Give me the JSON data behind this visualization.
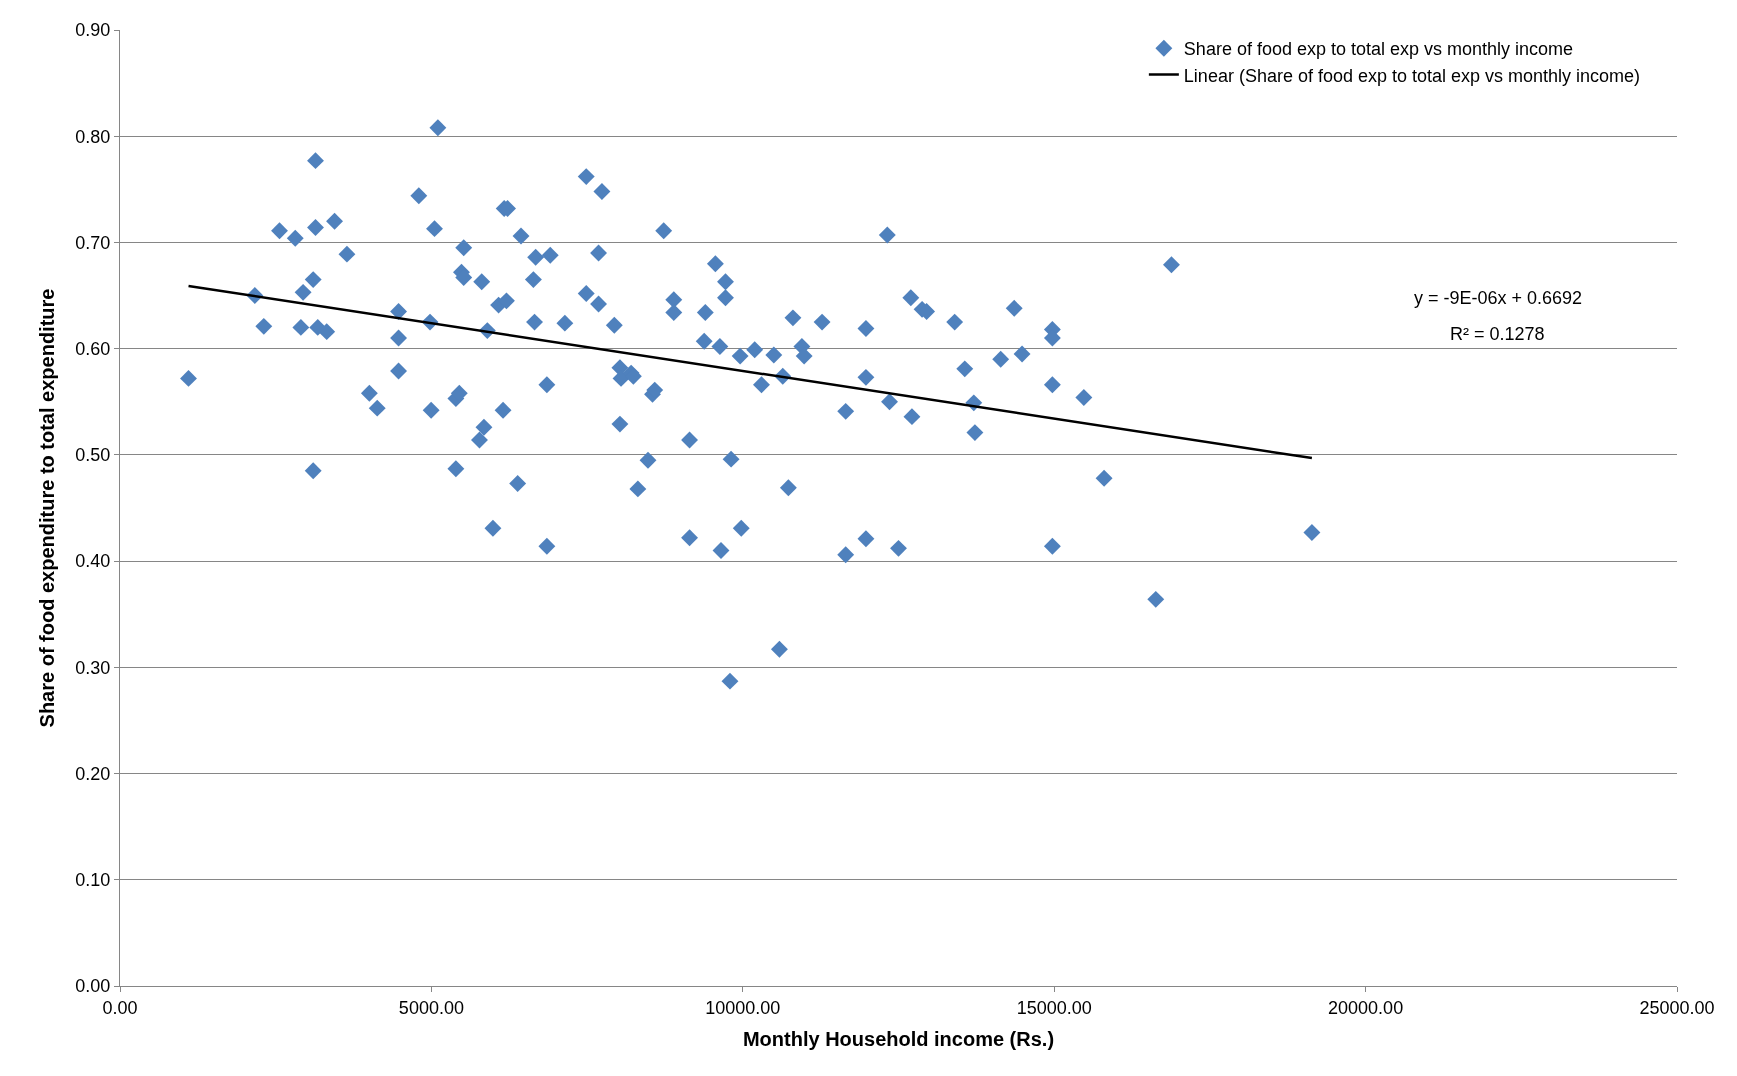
{
  "chart_data": {
    "type": "scatter",
    "xlabel": "Monthly Household income (Rs.)",
    "ylabel": "Share of food expenditure to total expenditure",
    "xlim": [
      0,
      25000
    ],
    "xticks": [
      {
        "value": 0,
        "label": "0.00"
      },
      {
        "value": 5000,
        "label": "5000.00"
      },
      {
        "value": 10000,
        "label": "10000.00"
      },
      {
        "value": 15000,
        "label": "15000.00"
      },
      {
        "value": 20000,
        "label": "20000.00"
      },
      {
        "value": 25000,
        "label": "25000.00"
      }
    ],
    "ylim": [
      0,
      0.9
    ],
    "yticks": [
      {
        "value": 0,
        "label": "0.00"
      },
      {
        "value": 0.1,
        "label": "0.10"
      },
      {
        "value": 0.2,
        "label": "0.20"
      },
      {
        "value": 0.3,
        "label": "0.30"
      },
      {
        "value": 0.4,
        "label": "0.40"
      },
      {
        "value": 0.5,
        "label": "0.50"
      },
      {
        "value": 0.6,
        "label": "0.60"
      },
      {
        "value": 0.7,
        "label": "0.70"
      },
      {
        "value": 0.8,
        "label": "0.80"
      },
      {
        "value": 0.9,
        "label": "0.90"
      }
    ],
    "grid": "y",
    "legend": "top right",
    "marker": "diamond",
    "annotations": [
      "y = -9E-06x + 0.6692",
      "R² = 0.1278"
    ],
    "series": [
      {
        "name": "Share of food exp to total exp vs monthly income",
        "color": "#4f81bd",
        "x": [
          1100,
          2165,
          2309,
          2561,
          2814,
          2940,
          2904,
          3139,
          3139,
          3102,
          3175,
          3319,
          3102,
          3445,
          3644,
          4004,
          4130,
          4473,
          4473,
          4473,
          4798,
          4978,
          4996,
          5104,
          5050,
          5393,
          5448,
          5393,
          5483,
          5519,
          5519,
          5808,
          5898,
          5844,
          5772,
          5988,
          6079,
          6151,
          6205,
          6169,
          6223,
          6385,
          6439,
          6638,
          6656,
          6674,
          6908,
          6854,
          6854,
          7143,
          7486,
          7486,
          7684,
          7684,
          7738,
          7937,
          8027,
          8045,
          8027,
          8207,
          8243,
          8315,
          8478,
          8550,
          8586,
          8730,
          8892,
          8892,
          9145,
          9145,
          9380,
          9398,
          9560,
          9632,
          9650,
          9722,
          9722,
          9812,
          9794,
          9957,
          9975,
          10191,
          10300,
          10498,
          10642,
          10588,
          10732,
          10805,
          10949,
          10985,
          11273,
          11652,
          11652,
          11977,
          11977,
          11977,
          12320,
          12356,
          12500,
          12698,
          12716,
          12879,
          12951,
          13402,
          13564,
          13709,
          13727,
          14141,
          14358,
          14484,
          14971,
          14971,
          14971,
          14971,
          15476,
          15801,
          16631,
          16883,
          19138
        ],
        "values": [
          0.572,
          0.65,
          0.621,
          0.711,
          0.704,
          0.653,
          0.62,
          0.777,
          0.714,
          0.665,
          0.62,
          0.616,
          0.485,
          0.72,
          0.689,
          0.558,
          0.544,
          0.635,
          0.61,
          0.579,
          0.744,
          0.625,
          0.542,
          0.808,
          0.713,
          0.553,
          0.558,
          0.487,
          0.672,
          0.695,
          0.667,
          0.663,
          0.617,
          0.526,
          0.514,
          0.431,
          0.641,
          0.542,
          0.645,
          0.732,
          0.732,
          0.473,
          0.706,
          0.665,
          0.625,
          0.686,
          0.688,
          0.566,
          0.414,
          0.624,
          0.762,
          0.652,
          0.642,
          0.69,
          0.748,
          0.622,
          0.582,
          0.572,
          0.529,
          0.577,
          0.574,
          0.468,
          0.495,
          0.557,
          0.561,
          0.711,
          0.646,
          0.634,
          0.514,
          0.422,
          0.607,
          0.634,
          0.68,
          0.602,
          0.41,
          0.663,
          0.648,
          0.496,
          0.287,
          0.593,
          0.431,
          0.599,
          0.566,
          0.594,
          0.574,
          0.317,
          0.469,
          0.629,
          0.602,
          0.593,
          0.625,
          0.541,
          0.406,
          0.619,
          0.573,
          0.421,
          0.707,
          0.55,
          0.412,
          0.648,
          0.536,
          0.637,
          0.635,
          0.625,
          0.581,
          0.549,
          0.521,
          0.59,
          0.638,
          0.595,
          0.618,
          0.61,
          0.566,
          0.414,
          0.554,
          0.478,
          0.364,
          0.679,
          0.427
        ]
      },
      {
        "name": "Linear (Share of food exp to total exp vs monthly income)",
        "type": "line",
        "color": "#000000",
        "marker": "none",
        "line_style": "solid",
        "x": [
          1100,
          19138
        ],
        "values": [
          0.659,
          0.497
        ]
      }
    ]
  }
}
